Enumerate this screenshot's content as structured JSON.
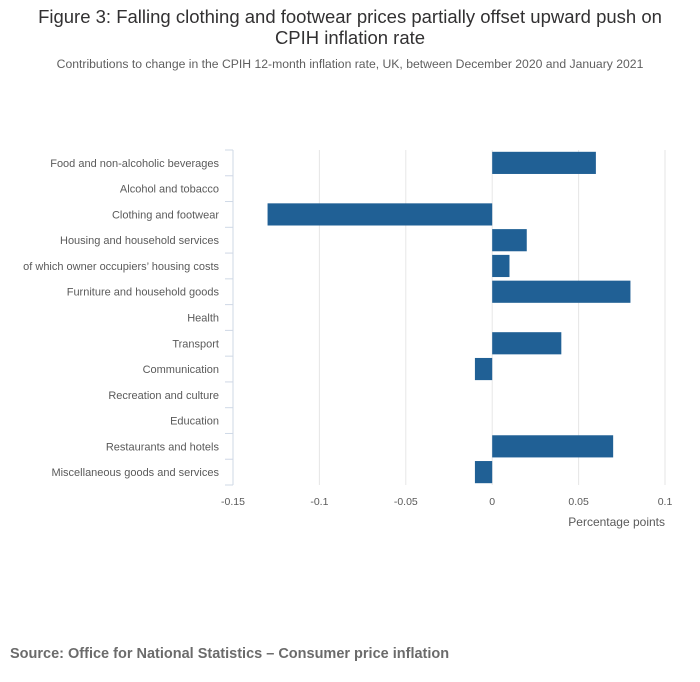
{
  "chart_data": {
    "type": "bar",
    "orientation": "horizontal",
    "title": "Figure 3: Falling clothing and footwear prices partially offset upward push on CPIH inflation rate",
    "subtitle": "Contributions to change in the CPIH 12-month inflation rate, UK, between December 2020 and January 2021",
    "xlabel": "Percentage points",
    "ylabel": "",
    "xlim": [
      -0.15,
      0.1
    ],
    "xticks": [
      -0.15,
      -0.1,
      -0.05,
      0,
      0.05,
      0.1
    ],
    "xtick_labels": [
      "-0.15",
      "-0.1",
      "-0.05",
      "0",
      "0.05",
      "0.1"
    ],
    "grid": true,
    "bar_color": "#206095",
    "categories": [
      "Food and non-alcoholic beverages",
      "Alcohol and tobacco",
      "Clothing and footwear",
      "Housing and household services",
      "of which owner occupiers’ housing costs",
      "Furniture and household goods",
      "Health",
      "Transport",
      "Communication",
      "Recreation and culture",
      "Education",
      "Restaurants and hotels",
      "Miscellaneous goods and services"
    ],
    "values": [
      0.06,
      0,
      -0.13,
      0.02,
      0.01,
      0.08,
      0,
      0.04,
      -0.01,
      0,
      0,
      0.07,
      -0.01
    ]
  },
  "source": "Source: Office for National Statistics – Consumer price inflation"
}
